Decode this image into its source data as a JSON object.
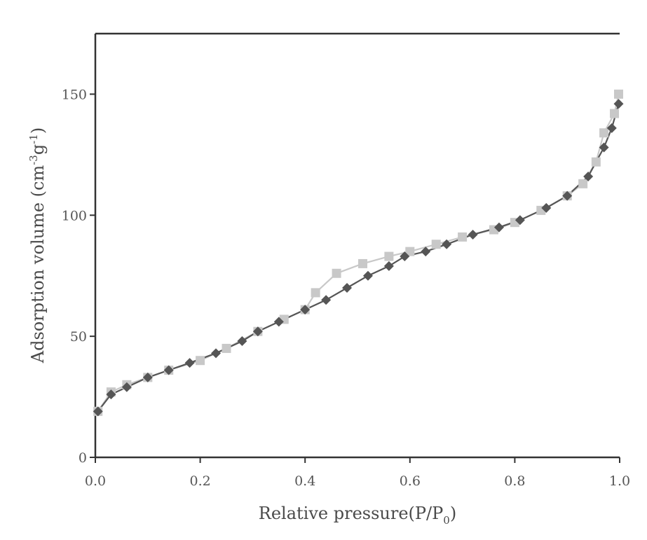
{
  "chart_data": {
    "type": "line",
    "title": "",
    "xlabel": {
      "main": "Relative pressure(P/P",
      "sub": "0",
      "tail": ")"
    },
    "ylabel": {
      "pre": "Adsorption volume (cm",
      "sup1": "-3",
      "mid": "g",
      "sup2": "-1",
      "tail": ")"
    },
    "xlim": [
      0.0,
      1.0
    ],
    "ylim": [
      0,
      175
    ],
    "x_ticks": [
      0.0,
      0.2,
      0.4,
      0.6,
      0.8,
      1.0
    ],
    "x_tick_labels": [
      "0.0",
      "0.2",
      "0.4",
      "0.6",
      "0.8",
      "1.0"
    ],
    "y_ticks": [
      0,
      50,
      100,
      150
    ],
    "y_tick_labels": [
      "0",
      "50",
      "100",
      "150"
    ],
    "grid": false,
    "legend": "none",
    "series": [
      {
        "color": "#c8c8c8",
        "marker": "square",
        "x": [
          0.005,
          0.03,
          0.06,
          0.1,
          0.14,
          0.2,
          0.25,
          0.31,
          0.36,
          0.4,
          0.42,
          0.46,
          0.51,
          0.56,
          0.6,
          0.65,
          0.7,
          0.76,
          0.8,
          0.85,
          0.9,
          0.93,
          0.955,
          0.97,
          0.99,
          0.998
        ],
        "y": [
          19,
          27,
          30,
          33,
          36,
          40,
          45,
          52,
          57,
          61,
          68,
          76,
          80,
          83,
          85,
          88,
          91,
          94,
          97,
          102,
          108,
          113,
          122,
          134,
          142,
          150
        ]
      },
      {
        "color": "#555555",
        "marker": "diamond",
        "x": [
          0.005,
          0.03,
          0.06,
          0.1,
          0.14,
          0.18,
          0.23,
          0.28,
          0.31,
          0.35,
          0.4,
          0.44,
          0.48,
          0.52,
          0.56,
          0.59,
          0.63,
          0.67,
          0.72,
          0.77,
          0.81,
          0.86,
          0.9,
          0.94,
          0.97,
          0.985,
          0.998
        ],
        "y": [
          19,
          26,
          29,
          33,
          36,
          39,
          43,
          48,
          52,
          56,
          61,
          65,
          70,
          75,
          79,
          83,
          85,
          88,
          92,
          95,
          98,
          103,
          108,
          116,
          128,
          136,
          146
        ]
      }
    ]
  }
}
